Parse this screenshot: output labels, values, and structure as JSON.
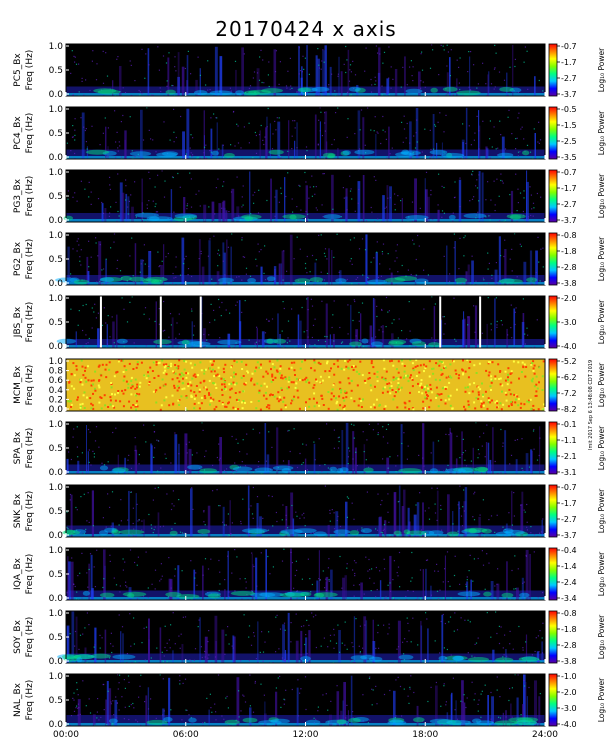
{
  "title": "20170424  x axis",
  "side_note": "Imit 2017 Sep 6 13:48:08 CDT 2019",
  "colors": {
    "plot_background": "#000000",
    "axis": "#000000",
    "colorbar": [
      "#5a00a0",
      "#0000ff",
      "#00c8ff",
      "#00ff80",
      "#80ff00",
      "#ffff00",
      "#ff8000",
      "#ff0000"
    ]
  },
  "chart_data": {
    "type": "heatmap",
    "x_axis": {
      "ticks": [
        "00:00",
        "06:00",
        "12:00",
        "18:00",
        "24:00"
      ],
      "range_hours": [
        0,
        24
      ]
    },
    "colorbar_label": "Log₁₀ Power",
    "panels": [
      {
        "station": "PC5_Bx",
        "ylabel": "Freq (Hz)",
        "y_ticks": [
          "1.0",
          "0.5",
          "0.0"
        ],
        "y_range": [
          0,
          1.0
        ],
        "cbar_ticks": [
          "-0.7",
          "-1.7",
          "-2.7",
          "-3.7"
        ],
        "cbar_range": [
          -3.7,
          -0.7
        ],
        "intensity": 0.35,
        "gaps_hours": []
      },
      {
        "station": "PC4_Bx",
        "ylabel": "Freq (Hz)",
        "y_ticks": [
          "1.0",
          "0.5",
          "0.0"
        ],
        "y_range": [
          0,
          1.0
        ],
        "cbar_ticks": [
          "-0.5",
          "-1.5",
          "-2.5",
          "-3.5"
        ],
        "cbar_range": [
          -3.5,
          -0.5
        ],
        "intensity": 0.35,
        "gaps_hours": []
      },
      {
        "station": "PG3_Bx",
        "ylabel": "Freq (Hz)",
        "y_ticks": [
          "1.0",
          "0.5",
          "0.0"
        ],
        "y_range": [
          0,
          1.0
        ],
        "cbar_ticks": [
          "-0.7",
          "-1.7",
          "-2.7",
          "-3.7"
        ],
        "cbar_range": [
          -3.7,
          -0.7
        ],
        "intensity": 0.3,
        "gaps_hours": []
      },
      {
        "station": "PG2_Bx",
        "ylabel": "Freq (Hz)",
        "y_ticks": [
          "1.0",
          "0.5",
          "0.0"
        ],
        "y_range": [
          0,
          1.0
        ],
        "cbar_ticks": [
          "-0.8",
          "-1.8",
          "-2.8",
          "-3.8"
        ],
        "cbar_range": [
          -3.8,
          -0.8
        ],
        "intensity": 0.4,
        "gaps_hours": []
      },
      {
        "station": "JBS_Bx",
        "ylabel": "Freq (Hz)",
        "y_ticks": [
          "1.0",
          "0.5",
          "0.0"
        ],
        "y_range": [
          0,
          1.0
        ],
        "cbar_ticks": [
          "-2.0",
          "-3.0",
          "-4.0"
        ],
        "cbar_range": [
          -4.0,
          -2.0
        ],
        "intensity": 0.3,
        "gaps_hours": [
          1.75,
          4.75,
          6.75,
          18.75,
          20.75
        ]
      },
      {
        "station": "MCM_Bx",
        "ylabel": "Freq (Hz)",
        "y_ticks": [
          "1.0",
          "0.8",
          "0.6",
          "0.4",
          "0.2",
          "0.0"
        ],
        "y_range": [
          0,
          1.0
        ],
        "cbar_ticks": [
          "-5.2",
          "-6.2",
          "-7.2",
          "-8.2"
        ],
        "cbar_range": [
          -8.2,
          -5.2
        ],
        "intensity": 1.0,
        "gaps_hours": []
      },
      {
        "station": "SPA_Bx",
        "ylabel": "Freq (Hz)",
        "y_ticks": [
          "1.0",
          "0.5",
          "0.0"
        ],
        "y_range": [
          0,
          1.0
        ],
        "cbar_ticks": [
          "-0.1",
          "-1.1",
          "-2.1",
          "-3.1"
        ],
        "cbar_range": [
          -3.1,
          -0.1
        ],
        "intensity": 0.35,
        "gaps_hours": []
      },
      {
        "station": "SNK_Bx",
        "ylabel": "Freq (Hz)",
        "y_ticks": [
          "1.0",
          "0.5",
          "0.0"
        ],
        "y_range": [
          0,
          1.0
        ],
        "cbar_ticks": [
          "-0.7",
          "-1.7",
          "-2.7",
          "-3.7"
        ],
        "cbar_range": [
          -3.7,
          -0.7
        ],
        "intensity": 0.55,
        "gaps_hours": []
      },
      {
        "station": "IQA_Bx",
        "ylabel": "Freq (Hz)",
        "y_ticks": [
          "1.0",
          "0.5",
          "0.0"
        ],
        "y_range": [
          0,
          1.0
        ],
        "cbar_ticks": [
          "-0.4",
          "-1.4",
          "-2.4",
          "-3.4"
        ],
        "cbar_range": [
          -3.4,
          -0.4
        ],
        "intensity": 0.35,
        "gaps_hours": []
      },
      {
        "station": "SOY_Bx",
        "ylabel": "Freq (Hz)",
        "y_ticks": [
          "1.0",
          "0.5",
          "0.0"
        ],
        "y_range": [
          0,
          1.0
        ],
        "cbar_ticks": [
          "-0.8",
          "-1.8",
          "-2.8",
          "-3.8"
        ],
        "cbar_range": [
          -3.8,
          -0.8
        ],
        "intensity": 0.35,
        "gaps_hours": []
      },
      {
        "station": "NAL_Bx",
        "ylabel": "Freq (Hz)",
        "y_ticks": [
          "1.0",
          "0.5",
          "0.0"
        ],
        "y_range": [
          0,
          1.0
        ],
        "cbar_ticks": [
          "-1.0",
          "-2.0",
          "-3.0",
          "-4.0"
        ],
        "cbar_range": [
          -4.0,
          -1.0
        ],
        "intensity": 0.5,
        "gaps_hours": []
      }
    ]
  }
}
